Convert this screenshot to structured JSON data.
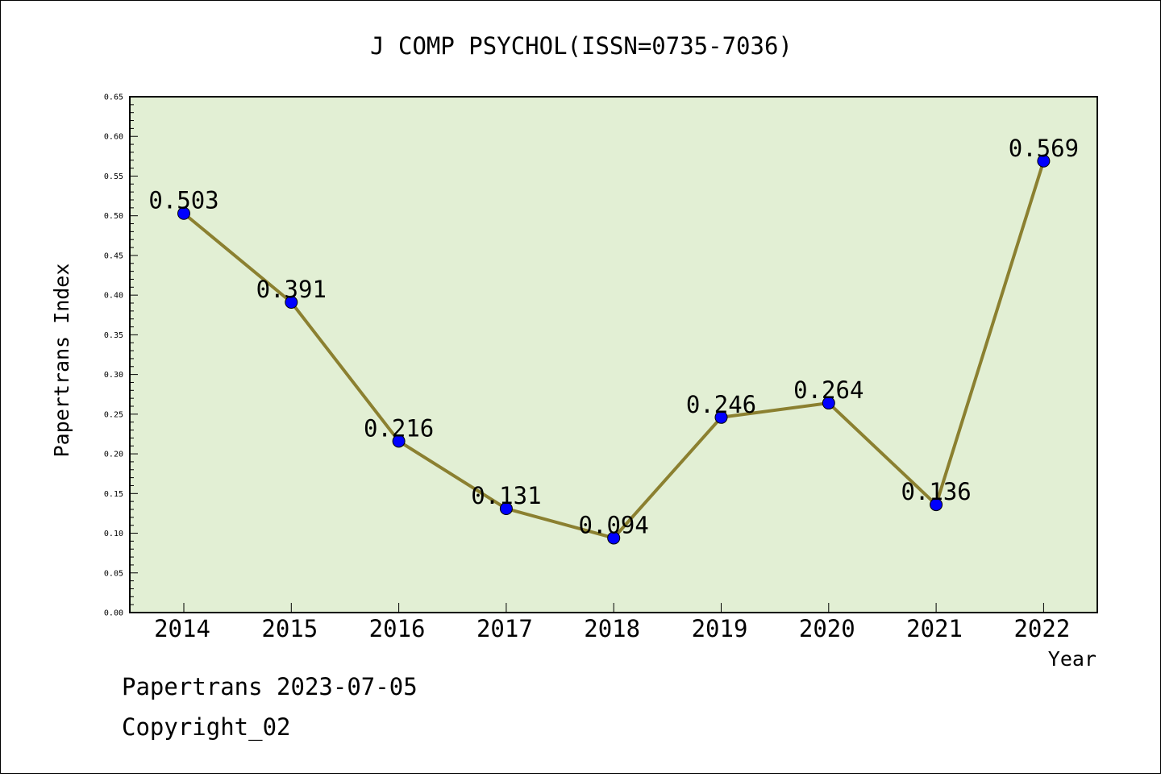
{
  "chart_data": {
    "type": "line",
    "title": "J COMP PSYCHOL(ISSN=0735-7036)",
    "xlabel": "Year",
    "ylabel": "Papertrans Index",
    "categories": [
      "2014",
      "2015",
      "2016",
      "2017",
      "2018",
      "2019",
      "2020",
      "2021",
      "2022"
    ],
    "series": [
      {
        "values": [
          0.503,
          0.391,
          0.216,
          0.131,
          0.094,
          0.246,
          0.264,
          0.136,
          0.569
        ],
        "labels": [
          "0.503",
          "0.391",
          "0.216",
          "0.131",
          "0.094",
          "0.246",
          "0.264",
          "0.136",
          "0.569"
        ]
      }
    ],
    "ylim": [
      0,
      0.65
    ],
    "yticks": [
      "0.00",
      "0.05",
      "0.10",
      "0.15",
      "0.20",
      "0.25",
      "0.30",
      "0.35",
      "0.40",
      "0.45",
      "0.50",
      "0.55",
      "0.60",
      "0.65"
    ],
    "grid": false,
    "colors": {
      "plot_background": "#e2efd4",
      "line": "#8b8030",
      "marker": "#0000ff"
    }
  },
  "footer": {
    "line1": "Papertrans 2023-07-05",
    "line2": "Copyright_02"
  }
}
